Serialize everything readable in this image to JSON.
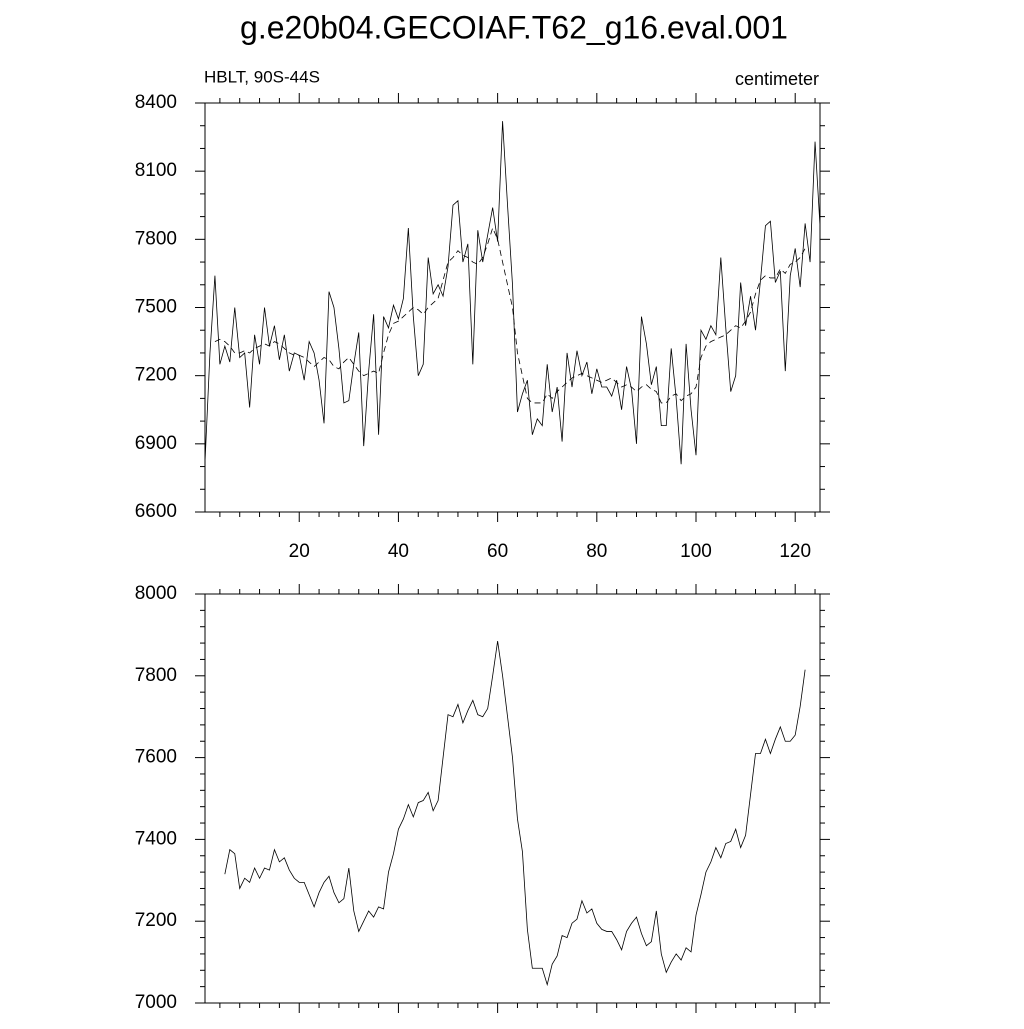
{
  "chart_data": [
    {
      "type": "line",
      "title": "g.e20b04.GECOIAF.T62_g16.eval.001",
      "subtitle": "HBLT, 90S-44S",
      "units": "centimeter",
      "x": [
        1,
        2,
        3,
        4,
        5,
        6,
        7,
        8,
        9,
        10,
        11,
        12,
        13,
        14,
        15,
        16,
        17,
        18,
        19,
        20,
        21,
        22,
        23,
        24,
        25,
        26,
        27,
        28,
        29,
        30,
        31,
        32,
        33,
        34,
        35,
        36,
        37,
        38,
        39,
        40,
        41,
        42,
        43,
        44,
        45,
        46,
        47,
        48,
        49,
        50,
        51,
        52,
        53,
        54,
        55,
        56,
        57,
        58,
        59,
        60,
        61,
        62,
        63,
        64,
        65,
        66,
        67,
        68,
        69,
        70,
        71,
        72,
        73,
        74,
        75,
        76,
        77,
        78,
        79,
        80,
        81,
        82,
        83,
        84,
        85,
        86,
        87,
        88,
        89,
        90,
        91,
        92,
        93,
        94,
        95,
        96,
        97,
        98,
        99,
        100,
        101,
        102,
        103,
        104,
        105,
        106,
        107,
        108,
        109,
        110,
        111,
        112,
        113,
        114,
        115,
        116,
        117,
        118,
        119,
        120,
        121,
        122,
        123,
        124,
        125
      ],
      "series": [
        {
          "color": "#000000",
          "dashed": false,
          "values": [
            6820,
            7300,
            7640,
            7250,
            7330,
            7260,
            7500,
            7280,
            7300,
            7060,
            7380,
            7250,
            7500,
            7330,
            7420,
            7270,
            7380,
            7220,
            7300,
            7290,
            7180,
            7350,
            7300,
            7180,
            6990,
            7570,
            7500,
            7320,
            7080,
            7090,
            7250,
            7390,
            6890,
            7220,
            7470,
            6940,
            7460,
            7410,
            7510,
            7450,
            7540,
            7850,
            7460,
            7200,
            7250,
            7720,
            7560,
            7600,
            7550,
            7680,
            7950,
            7970,
            7700,
            7780,
            7250,
            7840,
            7700,
            7820,
            7940,
            7790,
            8320,
            7950,
            7600,
            7040,
            7120,
            7180,
            6940,
            7010,
            6980,
            7250,
            7040,
            7150,
            6910,
            7300,
            7150,
            7310,
            7200,
            7260,
            7120,
            7230,
            7150,
            7150,
            7110,
            7180,
            7050,
            7240,
            7140,
            6900,
            7460,
            7340,
            7160,
            7240,
            6980,
            6980,
            7320,
            7100,
            6810,
            7340,
            7050,
            6850,
            7400,
            7360,
            7420,
            7380,
            7720,
            7410,
            7130,
            7200,
            7610,
            7420,
            7550,
            7400,
            7620,
            7860,
            7880,
            7610,
            7660,
            7220,
            7640,
            7760,
            7590,
            7870,
            7700,
            8230,
            7860
          ]
        },
        {
          "color": "#000000",
          "dashed": true,
          "values": [
            null,
            null,
            7350,
            7360,
            7350,
            7330,
            7300,
            7300,
            7310,
            7300,
            7320,
            7330,
            7340,
            7330,
            7350,
            7340,
            7320,
            7300,
            7290,
            7290,
            7280,
            7260,
            7240,
            7260,
            7280,
            7270,
            7240,
            7230,
            7260,
            7280,
            7250,
            7220,
            7200,
            7210,
            7220,
            7210,
            7300,
            7380,
            7430,
            7440,
            7460,
            7480,
            7500,
            7490,
            7470,
            7500,
            7520,
            7540,
            7620,
            7700,
            7720,
            7750,
            7730,
            7720,
            7700,
            7690,
            7720,
            7780,
            7850,
            7800,
            7700,
            7600,
            7500,
            7300,
            7200,
            7100,
            7080,
            7080,
            7080,
            7120,
            7100,
            7130,
            7150,
            7170,
            7190,
            7200,
            7210,
            7200,
            7190,
            7180,
            7170,
            7180,
            7190,
            7170,
            7150,
            7160,
            7150,
            7130,
            7150,
            7160,
            7140,
            7130,
            7080,
            7080,
            7110,
            7120,
            7090,
            7110,
            7120,
            7150,
            7280,
            7330,
            7350,
            7360,
            7370,
            7380,
            7400,
            7420,
            7410,
            7440,
            7480,
            7560,
            7620,
            7640,
            7630,
            7630,
            7670,
            7650,
            7690,
            7700,
            7720,
            7760,
            null,
            null,
            null
          ]
        }
      ],
      "xlim": [
        1,
        125
      ],
      "xticks": [
        20,
        40,
        60,
        80,
        100,
        120
      ],
      "xminor": [
        4,
        8,
        12,
        16,
        24,
        28,
        32,
        36,
        44,
        48,
        52,
        56,
        64,
        68,
        72,
        76,
        84,
        88,
        92,
        96,
        104,
        108,
        112,
        116,
        124
      ],
      "ylim": [
        6600,
        8400
      ],
      "yticks": [
        6600,
        6900,
        7200,
        7500,
        7800,
        8100,
        8400
      ],
      "yminor": [
        6700,
        6800,
        7000,
        7100,
        7300,
        7400,
        7600,
        7700,
        7900,
        8000,
        8200,
        8300
      ]
    },
    {
      "type": "line",
      "x": [
        5,
        6,
        7,
        8,
        9,
        10,
        11,
        12,
        13,
        14,
        15,
        16,
        17,
        18,
        19,
        20,
        21,
        22,
        23,
        24,
        25,
        26,
        27,
        28,
        29,
        30,
        31,
        32,
        33,
        34,
        35,
        36,
        37,
        38,
        39,
        40,
        41,
        42,
        43,
        44,
        45,
        46,
        47,
        48,
        49,
        50,
        51,
        52,
        53,
        54,
        55,
        56,
        57,
        58,
        59,
        60,
        61,
        62,
        63,
        64,
        65,
        66,
        67,
        68,
        69,
        70,
        71,
        72,
        73,
        74,
        75,
        76,
        77,
        78,
        79,
        80,
        81,
        82,
        83,
        84,
        85,
        86,
        87,
        88,
        89,
        90,
        91,
        92,
        93,
        94,
        95,
        96,
        97,
        98,
        99,
        100,
        101,
        102,
        103,
        104,
        105,
        106,
        107,
        108,
        109,
        110,
        111,
        112,
        113,
        114,
        115,
        116,
        117,
        118,
        119,
        120,
        121,
        122
      ],
      "series": [
        {
          "color": "#000000",
          "dashed": false,
          "values": [
            7315,
            7375,
            7365,
            7280,
            7305,
            7295,
            7330,
            7305,
            7330,
            7325,
            7375,
            7345,
            7355,
            7325,
            7305,
            7295,
            7295,
            7265,
            7235,
            7270,
            7295,
            7310,
            7270,
            7245,
            7255,
            7330,
            7225,
            7175,
            7200,
            7225,
            7210,
            7235,
            7230,
            7320,
            7365,
            7425,
            7450,
            7485,
            7455,
            7490,
            7495,
            7515,
            7470,
            7495,
            7600,
            7705,
            7700,
            7730,
            7685,
            7715,
            7740,
            7705,
            7700,
            7720,
            7800,
            7885,
            7800,
            7700,
            7600,
            7450,
            7370,
            7180,
            7085,
            7085,
            7085,
            7045,
            7095,
            7115,
            7165,
            7160,
            7195,
            7205,
            7250,
            7220,
            7230,
            7195,
            7180,
            7175,
            7175,
            7155,
            7130,
            7175,
            7195,
            7210,
            7170,
            7140,
            7150,
            7225,
            7120,
            7075,
            7100,
            7120,
            7105,
            7135,
            7125,
            7215,
            7265,
            7320,
            7345,
            7380,
            7355,
            7390,
            7395,
            7425,
            7380,
            7410,
            7510,
            7610,
            7610,
            7645,
            7610,
            7645,
            7675,
            7640,
            7640,
            7655,
            7725,
            7815
          ]
        }
      ],
      "xlim": [
        1,
        125
      ],
      "xticks": [
        20,
        40,
        60,
        80,
        100,
        120
      ],
      "xminor": [
        4,
        8,
        12,
        16,
        24,
        28,
        32,
        36,
        44,
        48,
        52,
        56,
        64,
        68,
        72,
        76,
        84,
        88,
        92,
        96,
        104,
        108,
        112,
        116,
        124
      ],
      "ylim": [
        7000,
        8000
      ],
      "yticks": [
        7000,
        7200,
        7400,
        7600,
        7800,
        8000
      ],
      "yminor": [
        7040,
        7080,
        7120,
        7160,
        7240,
        7280,
        7320,
        7360,
        7440,
        7480,
        7520,
        7560,
        7640,
        7680,
        7720,
        7760,
        7840,
        7880,
        7920,
        7960
      ]
    }
  ]
}
